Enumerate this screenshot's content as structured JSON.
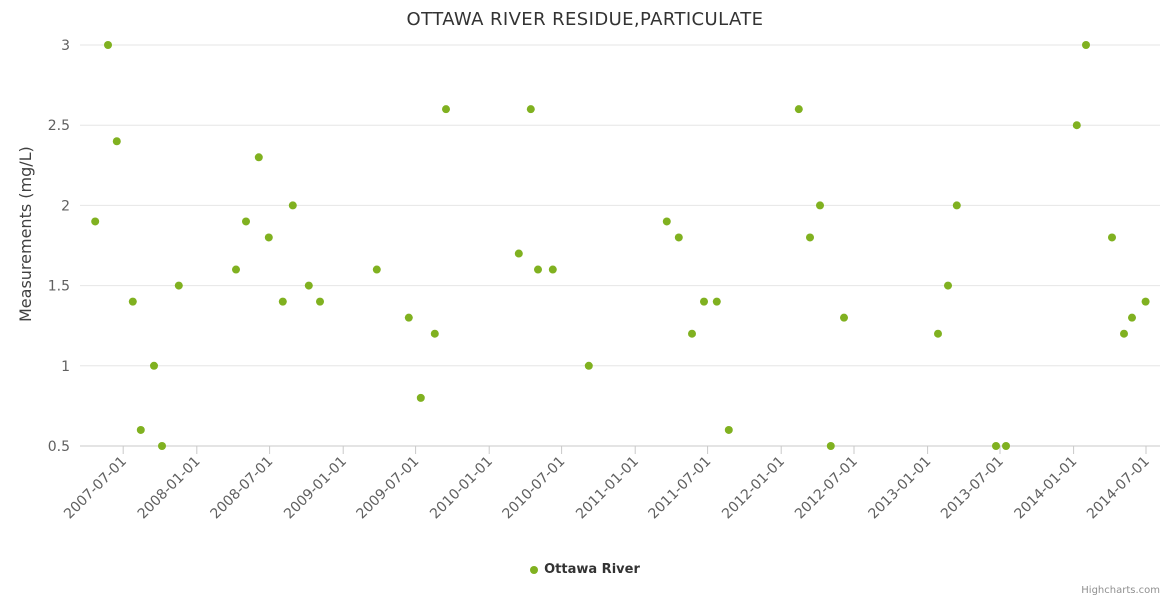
{
  "credits": "Highcharts.com",
  "chart_data": {
    "type": "scatter",
    "title": "OTTAWA RIVER RESIDUE,PARTICULATE",
    "xlabel": "",
    "ylabel": "Measurements (mg/L)",
    "ylim": [
      0.5,
      3
    ],
    "y_ticks": [
      0.5,
      1,
      1.5,
      2,
      2.5,
      3
    ],
    "x_ticks": [
      "2007-07-01",
      "2008-01-01",
      "2008-07-01",
      "2009-01-01",
      "2009-07-01",
      "2010-01-01",
      "2010-07-01",
      "2011-01-01",
      "2011-07-01",
      "2012-01-01",
      "2012-07-01",
      "2013-01-01",
      "2013-07-01",
      "2014-01-01",
      "2014-07-01"
    ],
    "x_range": [
      "2007-03-15",
      "2014-08-05"
    ],
    "grid": "horizontal",
    "legend_position": "bottom-center",
    "colors": {
      "point": "#80b120",
      "grid": "#e6e6e6",
      "axis_line": "#c9c9c9",
      "tick": "#c9c9c9",
      "axis_label": "#606060",
      "title": "#333333",
      "y_axis_title": "#404040",
      "legend_label": "#333333",
      "credits": "#909090"
    },
    "series": [
      {
        "name": "Ottawa River",
        "color": "#80b120",
        "marker": "circle",
        "points": [
          [
            "2007-04-22",
            1.9
          ],
          [
            "2007-05-24",
            3.0
          ],
          [
            "2007-06-15",
            2.4
          ],
          [
            "2007-07-25",
            1.4
          ],
          [
            "2007-08-14",
            0.6
          ],
          [
            "2007-09-16",
            1.0
          ],
          [
            "2007-10-06",
            0.5
          ],
          [
            "2007-11-17",
            1.5
          ],
          [
            "2008-04-08",
            1.6
          ],
          [
            "2008-05-03",
            1.9
          ],
          [
            "2008-06-04",
            2.3
          ],
          [
            "2008-06-29",
            1.8
          ],
          [
            "2008-08-03",
            1.4
          ],
          [
            "2008-08-28",
            2.0
          ],
          [
            "2008-10-07",
            1.5
          ],
          [
            "2008-11-04",
            1.4
          ],
          [
            "2009-03-26",
            1.6
          ],
          [
            "2009-06-14",
            1.3
          ],
          [
            "2009-07-14",
            0.8
          ],
          [
            "2009-08-18",
            1.2
          ],
          [
            "2009-09-15",
            2.6
          ],
          [
            "2010-03-16",
            1.7
          ],
          [
            "2010-04-15",
            2.6
          ],
          [
            "2010-05-03",
            1.6
          ],
          [
            "2010-06-09",
            1.6
          ],
          [
            "2010-09-07",
            1.0
          ],
          [
            "2011-03-21",
            1.9
          ],
          [
            "2011-04-20",
            1.8
          ],
          [
            "2011-05-23",
            1.2
          ],
          [
            "2011-06-22",
            1.4
          ],
          [
            "2011-07-24",
            1.4
          ],
          [
            "2011-08-23",
            0.6
          ],
          [
            "2012-02-14",
            2.6
          ],
          [
            "2012-03-13",
            1.8
          ],
          [
            "2012-04-07",
            2.0
          ],
          [
            "2012-05-04",
            0.5
          ],
          [
            "2012-06-06",
            1.3
          ],
          [
            "2013-01-27",
            1.2
          ],
          [
            "2013-02-21",
            1.5
          ],
          [
            "2013-03-15",
            2.0
          ],
          [
            "2013-06-21",
            0.5
          ],
          [
            "2013-07-16",
            0.5
          ],
          [
            "2014-01-09",
            2.5
          ],
          [
            "2014-02-01",
            3.0
          ],
          [
            "2014-04-07",
            1.8
          ],
          [
            "2014-05-07",
            1.2
          ],
          [
            "2014-05-27",
            1.3
          ],
          [
            "2014-06-30",
            1.4
          ]
        ]
      }
    ]
  }
}
